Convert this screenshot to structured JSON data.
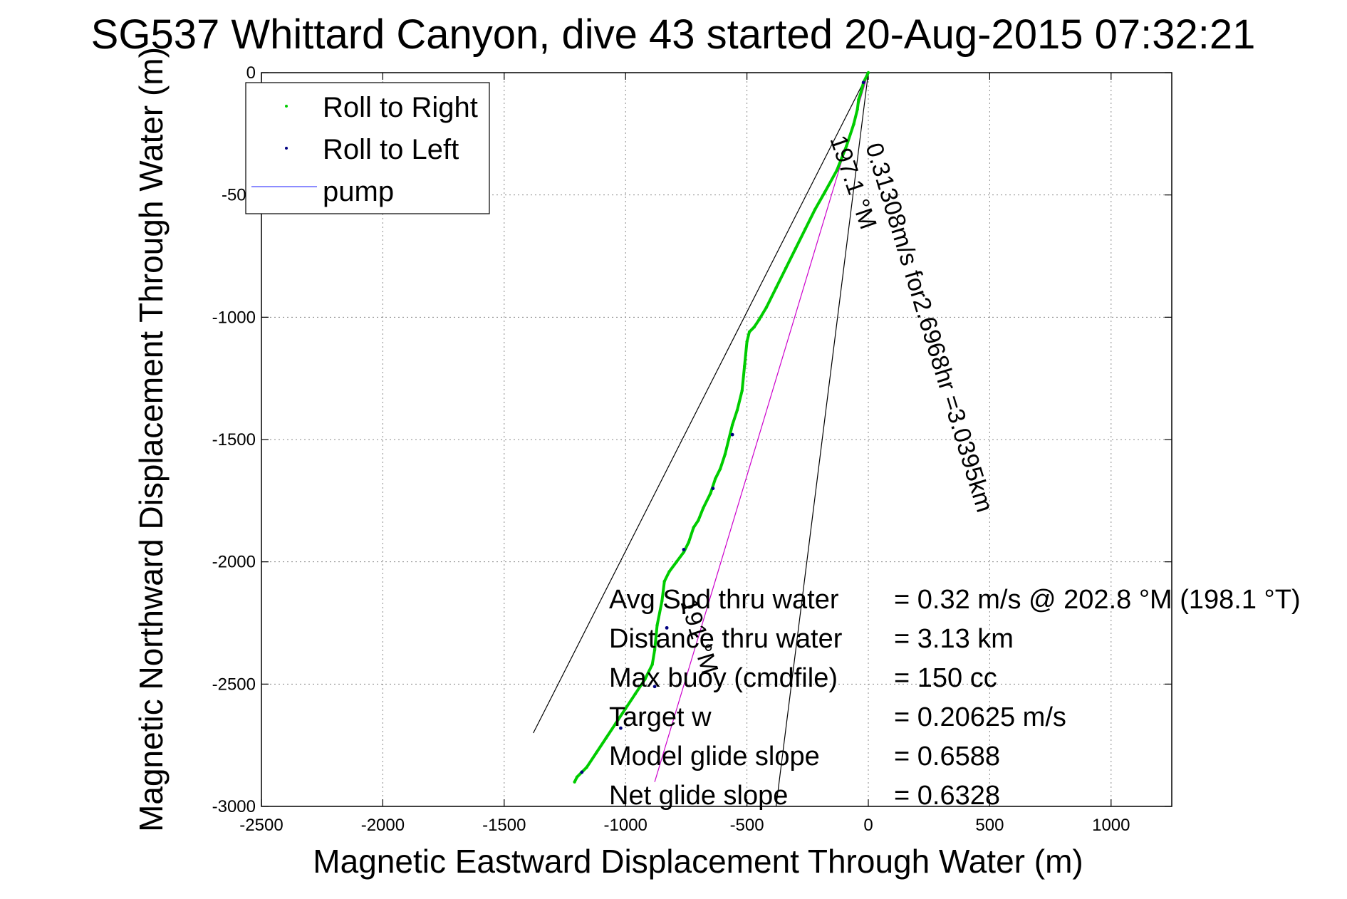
{
  "chart_data": {
    "type": "scatter",
    "title": "SG537 Whittard Canyon, dive 43 started 20-Aug-2015 07:32:21",
    "xlabel": "Magnetic Eastward Displacement Through Water (m)",
    "ylabel": "Magnetic Northward Displacement Through Water (m)",
    "xlim": [
      -2500,
      1250
    ],
    "ylim": [
      -3000,
      0
    ],
    "xticks": [
      -2500,
      -2000,
      -1500,
      -1000,
      -500,
      0,
      500,
      1000
    ],
    "yticks": [
      0,
      -500,
      -1000,
      -1500,
      -2000,
      -2500,
      -3000
    ],
    "xtick_labels": [
      "-2500",
      "-2000",
      "-1500",
      "-1000",
      "-500",
      "0",
      "500",
      "1000"
    ],
    "ytick_labels": [
      "0",
      "-500",
      "-1000",
      "-1500",
      "-2000",
      "-2500",
      "-3000"
    ],
    "grid": true,
    "legend_placement": "top-left",
    "series": [
      {
        "name": "Roll to Right",
        "color": "#00cc00",
        "x": [
          0,
          -20,
          -30,
          -40,
          -45,
          -60,
          -90,
          -130,
          -180,
          -220,
          -260,
          -300,
          -340,
          -380,
          -420,
          -450,
          -470,
          -490,
          -500,
          -510,
          -520,
          -540,
          -560,
          -575,
          -590,
          -610,
          -630,
          -650,
          -680,
          -700,
          -720,
          -740,
          -760,
          -790,
          -820,
          -840,
          -850,
          -870,
          -880,
          -890,
          -920,
          -960,
          -1000,
          -1040,
          -1080,
          -1120,
          -1160,
          -1200,
          -1210
        ],
        "y": [
          0,
          -40,
          -80,
          -110,
          -150,
          -210,
          -300,
          -400,
          -490,
          -560,
          -640,
          -720,
          -800,
          -880,
          -960,
          -1010,
          -1040,
          -1060,
          -1100,
          -1200,
          -1300,
          -1380,
          -1440,
          -1500,
          -1560,
          -1620,
          -1660,
          -1720,
          -1780,
          -1830,
          -1860,
          -1920,
          -1960,
          -2000,
          -2040,
          -2080,
          -2160,
          -2260,
          -2360,
          -2420,
          -2480,
          -2540,
          -2600,
          -2660,
          -2720,
          -2780,
          -2840,
          -2880,
          -2900
        ]
      },
      {
        "name": "Roll to Left",
        "color": "#000080",
        "x": [
          -20,
          -560,
          -640,
          -760,
          -830,
          -880,
          -1020,
          -1180
        ],
        "y": [
          -40,
          -1480,
          -1700,
          -1950,
          -2270,
          -2510,
          -2680,
          -2860
        ]
      },
      {
        "name": "pump",
        "color": "#6666ff",
        "x": [],
        "y": []
      }
    ],
    "reference_lines": [
      {
        "color": "#000000",
        "x": [
          0,
          -1380
        ],
        "y": [
          0,
          -2700
        ]
      },
      {
        "color": "#000000",
        "x": [
          0,
          -380
        ],
        "y": [
          0,
          -3000
        ]
      },
      {
        "color": "#cc00cc",
        "x": [
          0,
          -880
        ],
        "y": [
          0,
          -2900
        ]
      }
    ],
    "annotations": [
      {
        "text": "197.1 °M"
      },
      {
        "text": "0.31308m/s for2.6968hr =3.0395km"
      },
      {
        "text": "191 °M"
      }
    ],
    "info_rows": [
      {
        "label": "Avg Spd thru water",
        "value": "=  0.32 m/s @ 202.8 °M (198.1 °T)"
      },
      {
        "label": "Distance thru water",
        "value": "=  3.13 km"
      },
      {
        "label": "Max buoy (cmdfile)",
        "value": "= 150 cc"
      },
      {
        "label": "Target w",
        "value": "= 0.20625 m/s"
      },
      {
        "label": "Model glide slope",
        "value": "= 0.6588"
      },
      {
        "label": "Net glide slope",
        "value": "= 0.6328"
      }
    ]
  }
}
